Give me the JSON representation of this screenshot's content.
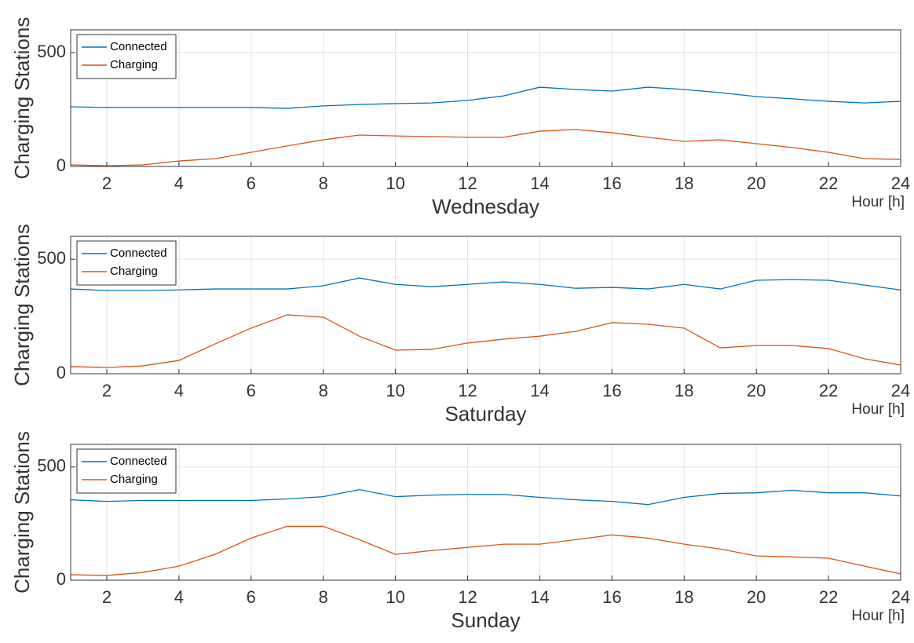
{
  "chart_data": [
    {
      "type": "line",
      "xlabel": "Wednesday",
      "ylabel": "Charging Stations",
      "annotation": "Hour [h]",
      "x": [
        1,
        2,
        3,
        4,
        5,
        6,
        7,
        8,
        9,
        10,
        11,
        12,
        13,
        14,
        15,
        16,
        17,
        18,
        19,
        20,
        21,
        22,
        23,
        24
      ],
      "series": [
        {
          "name": "Connected",
          "color": "#0072bd",
          "values": [
            262,
            259,
            259,
            259,
            259,
            259,
            255,
            266,
            272,
            276,
            279,
            290,
            310,
            348,
            338,
            331,
            348,
            338,
            324,
            307,
            297,
            286,
            279,
            286
          ]
        },
        {
          "name": "Charging",
          "color": "#d95319",
          "values": [
            7,
            3,
            7,
            24,
            34,
            62,
            90,
            117,
            138,
            134,
            131,
            128,
            128,
            155,
            162,
            148,
            128,
            110,
            117,
            100,
            83,
            62,
            34,
            31
          ]
        }
      ],
      "xlim": [
        1,
        24
      ],
      "xticks": [
        2,
        4,
        6,
        8,
        10,
        12,
        14,
        16,
        18,
        20,
        22,
        24
      ],
      "ylim": [
        0,
        600
      ],
      "yticks": [
        0,
        500
      ],
      "grid": true,
      "legend": "upper left"
    },
    {
      "type": "line",
      "xlabel": "Saturday",
      "ylabel": "Charging Stations",
      "annotation": "Hour [h]",
      "x": [
        1,
        2,
        3,
        4,
        5,
        6,
        7,
        8,
        9,
        10,
        11,
        12,
        13,
        14,
        15,
        16,
        17,
        18,
        19,
        20,
        21,
        22,
        23,
        24
      ],
      "series": [
        {
          "name": "Connected",
          "color": "#0072bd",
          "values": [
            370,
            363,
            363,
            366,
            370,
            370,
            370,
            384,
            418,
            390,
            380,
            390,
            401,
            390,
            373,
            377,
            370,
            390,
            370,
            408,
            411,
            408,
            387,
            366
          ]
        },
        {
          "name": "Charging",
          "color": "#d95319",
          "values": [
            31,
            27,
            34,
            58,
            130,
            199,
            257,
            247,
            164,
            103,
            106,
            134,
            151,
            164,
            185,
            223,
            216,
            199,
            113,
            123,
            123,
            110,
            65,
            38
          ]
        }
      ],
      "xlim": [
        1,
        24
      ],
      "xticks": [
        2,
        4,
        6,
        8,
        10,
        12,
        14,
        16,
        18,
        20,
        22,
        24
      ],
      "ylim": [
        0,
        600
      ],
      "yticks": [
        0,
        500
      ],
      "grid": true,
      "legend": "upper left"
    },
    {
      "type": "line",
      "xlabel": "Sunday",
      "ylabel": "Charging Stations",
      "annotation": "Hour [h]",
      "x": [
        1,
        2,
        3,
        4,
        5,
        6,
        7,
        8,
        9,
        10,
        11,
        12,
        13,
        14,
        15,
        16,
        17,
        18,
        19,
        20,
        21,
        22,
        23,
        24
      ],
      "series": [
        {
          "name": "Connected",
          "color": "#0072bd",
          "values": [
            355,
            348,
            352,
            352,
            352,
            352,
            359,
            369,
            400,
            369,
            376,
            379,
            379,
            366,
            355,
            348,
            334,
            366,
            383,
            386,
            397,
            386,
            386,
            372
          ]
        },
        {
          "name": "Charging",
          "color": "#d95319",
          "values": [
            24,
            21,
            34,
            62,
            114,
            186,
            238,
            238,
            179,
            114,
            131,
            145,
            159,
            159,
            179,
            200,
            186,
            159,
            138,
            107,
            103,
            97,
            62,
            28
          ]
        }
      ],
      "xlim": [
        1,
        24
      ],
      "xticks": [
        2,
        4,
        6,
        8,
        10,
        12,
        14,
        16,
        18,
        20,
        22,
        24
      ],
      "ylim": [
        0,
        600
      ],
      "yticks": [
        0,
        500
      ],
      "grid": true,
      "legend": "upper left"
    }
  ]
}
